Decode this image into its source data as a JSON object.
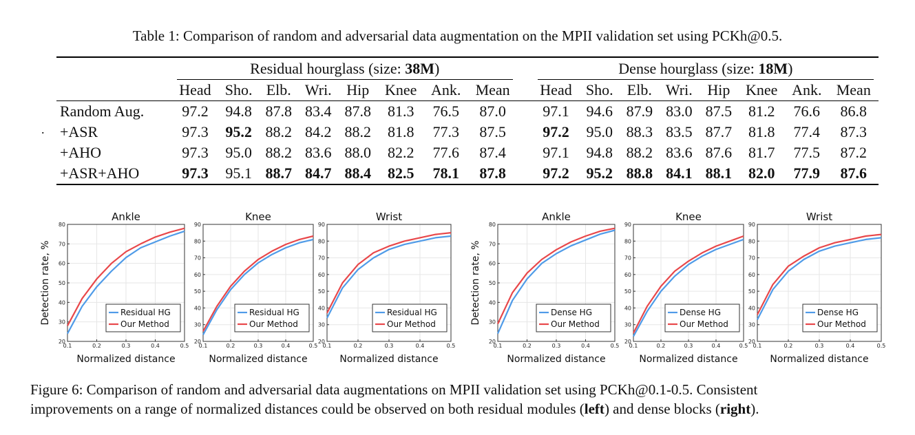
{
  "table": {
    "caption": "Table 1: Comparison of random and adversarial data augmentation on the MPII validation set using PCKh@0.5.",
    "group_left": {
      "prefix": "Residual hourglass (size: ",
      "size": "38M",
      "suffix": ")"
    },
    "group_right": {
      "prefix": "Dense hourglass (size: ",
      "size": "18M",
      "suffix": ")"
    },
    "columns": [
      "Head",
      "Sho.",
      "Elb.",
      "Wri.",
      "Hip",
      "Knee",
      "Ank.",
      "Mean"
    ],
    "rows": [
      {
        "label": "Random Aug.",
        "left": [
          "97.2",
          "94.8",
          "87.8",
          "83.4",
          "87.8",
          "81.3",
          "76.5",
          "87.0"
        ],
        "right": [
          "97.1",
          "94.6",
          "87.9",
          "83.0",
          "87.5",
          "81.2",
          "76.6",
          "86.8"
        ],
        "left_bold": [],
        "right_bold": []
      },
      {
        "label": "+ASR",
        "left": [
          "97.3",
          "95.2",
          "88.2",
          "84.2",
          "88.2",
          "81.8",
          "77.3",
          "87.5"
        ],
        "right": [
          "97.2",
          "95.0",
          "88.3",
          "83.5",
          "87.7",
          "81.8",
          "77.4",
          "87.3"
        ],
        "left_bold": [
          1
        ],
        "right_bold": [
          0
        ]
      },
      {
        "label": "+AHO",
        "left": [
          "97.3",
          "95.0",
          "88.2",
          "83.6",
          "88.0",
          "82.2",
          "77.6",
          "87.4"
        ],
        "right": [
          "97.1",
          "94.8",
          "88.2",
          "83.6",
          "87.6",
          "81.7",
          "77.5",
          "87.2"
        ],
        "left_bold": [],
        "right_bold": []
      },
      {
        "label": "+ASR+AHO",
        "left": [
          "97.3",
          "95.1",
          "88.7",
          "84.7",
          "88.4",
          "82.5",
          "78.1",
          "87.8"
        ],
        "right": [
          "97.2",
          "95.2",
          "88.8",
          "84.1",
          "88.1",
          "82.0",
          "77.9",
          "87.6"
        ],
        "left_bold": [
          0,
          2,
          3,
          4,
          5,
          6,
          7
        ],
        "right_bold": [
          0,
          1,
          2,
          3,
          4,
          5,
          6,
          7
        ]
      }
    ]
  },
  "stray_mark": ".",
  "colors": {
    "baseline": "#4f9be8",
    "ours": "#e8474a",
    "axis": "#333333",
    "grid": "#e6e6e6"
  },
  "chart_data": [
    {
      "type": "line",
      "title": "Ankle",
      "xlabel": "Normalized distance",
      "ylabel": "Detection rate, %",
      "xlim": [
        0.1,
        0.5
      ],
      "ylim": [
        20,
        80
      ],
      "xticks": [
        "0.1",
        "0.2",
        "0.3",
        "0.4",
        "0.5"
      ],
      "yticks": [
        "20",
        "30",
        "40",
        "50",
        "60",
        "70",
        "80"
      ],
      "legend_position": "bottom-right",
      "x": [
        0.1,
        0.15,
        0.2,
        0.25,
        0.3,
        0.35,
        0.4,
        0.45,
        0.5
      ],
      "series": [
        {
          "name": "Residual HG",
          "values": [
            24,
            38,
            48,
            56,
            63,
            68,
            71,
            74,
            76.5
          ]
        },
        {
          "name": "Our Method",
          "values": [
            28,
            42,
            52,
            60,
            66,
            70,
            73.5,
            76,
            78
          ]
        }
      ]
    },
    {
      "type": "line",
      "title": "Knee",
      "xlabel": "Normalized distance",
      "ylabel": "",
      "xlim": [
        0.1,
        0.5
      ],
      "ylim": [
        20,
        90
      ],
      "xticks": [
        "0.1",
        "0.2",
        "0.3",
        "0.4",
        "0.5"
      ],
      "yticks": [
        "20",
        "30",
        "40",
        "50",
        "60",
        "70",
        "80",
        "90"
      ],
      "legend_position": "bottom-right",
      "x": [
        0.1,
        0.15,
        0.2,
        0.25,
        0.3,
        0.35,
        0.4,
        0.45,
        0.5
      ],
      "series": [
        {
          "name": "Residual HG",
          "values": [
            24,
            39,
            51,
            60,
            67,
            72,
            76,
            79,
            81
          ]
        },
        {
          "name": "Our Method",
          "values": [
            26,
            41,
            53,
            62,
            69,
            74,
            78,
            81,
            83
          ]
        }
      ]
    },
    {
      "type": "line",
      "title": "Wrist",
      "xlabel": "Normalized distance",
      "ylabel": "",
      "xlim": [
        0.1,
        0.5
      ],
      "ylim": [
        20,
        90
      ],
      "xticks": [
        "0.1",
        "0.2",
        "0.3",
        "0.4",
        "0.5"
      ],
      "yticks": [
        "20",
        "30",
        "40",
        "50",
        "60",
        "70",
        "80",
        "90"
      ],
      "legend_position": "bottom-right",
      "x": [
        0.1,
        0.15,
        0.2,
        0.25,
        0.3,
        0.35,
        0.4,
        0.45,
        0.5
      ],
      "series": [
        {
          "name": "Residual HG",
          "values": [
            34,
            52,
            63,
            70,
            75,
            78,
            80,
            82,
            83
          ]
        },
        {
          "name": "Our Method",
          "values": [
            37,
            55,
            66,
            73,
            77,
            80,
            82,
            84,
            85
          ]
        }
      ]
    },
    {
      "type": "line",
      "title": "Ankle",
      "xlabel": "Normalized distance",
      "ylabel": "Detection rate, %",
      "xlim": [
        0.1,
        0.5
      ],
      "ylim": [
        20,
        80
      ],
      "xticks": [
        "0.1",
        "0.2",
        "0.3",
        "0.4",
        "0.5"
      ],
      "yticks": [
        "20",
        "30",
        "40",
        "50",
        "60",
        "70",
        "80"
      ],
      "legend_position": "bottom-right",
      "x": [
        0.1,
        0.15,
        0.2,
        0.25,
        0.3,
        0.35,
        0.4,
        0.45,
        0.5
      ],
      "series": [
        {
          "name": "Dense HG",
          "values": [
            24,
            41,
            52,
            60,
            65,
            69,
            72,
            75,
            77
          ]
        },
        {
          "name": "Our Method",
          "values": [
            29,
            45,
            55,
            62,
            67,
            71,
            74,
            76.5,
            78
          ]
        }
      ]
    },
    {
      "type": "line",
      "title": "Knee",
      "xlabel": "Normalized distance",
      "ylabel": "",
      "xlim": [
        0.1,
        0.5
      ],
      "ylim": [
        20,
        90
      ],
      "xticks": [
        "0.1",
        "0.2",
        "0.3",
        "0.4",
        "0.5"
      ],
      "yticks": [
        "20",
        "30",
        "40",
        "50",
        "60",
        "70",
        "80",
        "90"
      ],
      "legend_position": "bottom-right",
      "x": [
        0.1,
        0.15,
        0.2,
        0.25,
        0.3,
        0.35,
        0.4,
        0.45,
        0.5
      ],
      "series": [
        {
          "name": "Dense HG",
          "values": [
            23,
            38,
            50,
            59,
            66,
            71,
            75,
            78,
            81
          ]
        },
        {
          "name": "Our Method",
          "values": [
            25,
            41,
            53,
            62,
            68,
            73,
            77,
            80,
            83
          ]
        }
      ]
    },
    {
      "type": "line",
      "title": "Wrist",
      "xlabel": "Normalized distance",
      "ylabel": "",
      "xlim": [
        0.1,
        0.5
      ],
      "ylim": [
        20,
        90
      ],
      "xticks": [
        "0.1",
        "0.2",
        "0.3",
        "0.4",
        "0.5"
      ],
      "yticks": [
        "20",
        "30",
        "40",
        "50",
        "60",
        "70",
        "80",
        "90"
      ],
      "legend_position": "bottom-right",
      "x": [
        0.1,
        0.15,
        0.2,
        0.25,
        0.3,
        0.35,
        0.4,
        0.45,
        0.5
      ],
      "series": [
        {
          "name": "Dense HG",
          "values": [
            33,
            51,
            62,
            69,
            74,
            77,
            79,
            81,
            82
          ]
        },
        {
          "name": "Our Method",
          "values": [
            36,
            54,
            65,
            71,
            76,
            79,
            81,
            83,
            84
          ]
        }
      ]
    }
  ],
  "figure": {
    "caption_line1": "Figure 6: Comparison of random and adversarial data augmentations on MPII validation set using PCKh@0.1-0.5. Consistent",
    "caption_line2_a": "improvements on a range of normalized distances could be observed on both residual modules (",
    "caption_left": "left",
    "caption_line2_b": ") and dense blocks (",
    "caption_right": "right",
    "caption_line2_c": ")."
  }
}
